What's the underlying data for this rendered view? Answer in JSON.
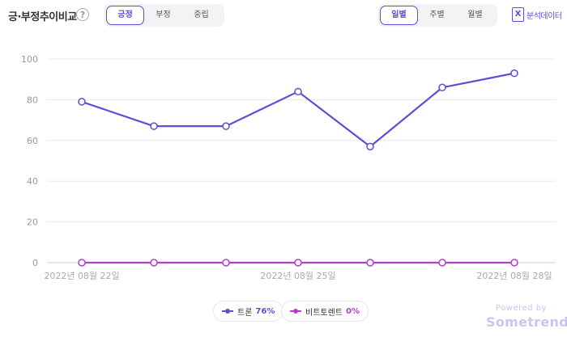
{
  "header": {
    "title": "긍·부정추이비교",
    "help_symbol": "?",
    "sentiment_tabs": [
      "긍정",
      "부정",
      "중립"
    ],
    "sentiment_active": 0,
    "period_tabs": [
      "일별",
      "주별",
      "월별"
    ],
    "period_active": 0,
    "export": {
      "icon_letter": "X",
      "label": "분석데이터"
    }
  },
  "chart_data": {
    "type": "line",
    "x": [
      "2022년 08월 22일",
      "2022년 08월 23일",
      "2022년 08월 24일",
      "2022년 08월 25일",
      "2022년 08월 26일",
      "2022년 08월 27일",
      "2022년 08월 28일"
    ],
    "x_tick_labels": [
      "2022년 08월 22일",
      "2022년 08월 25일",
      "2022년 08월 28일"
    ],
    "y_ticks": [
      0,
      20,
      40,
      60,
      80,
      100
    ],
    "ylim": [
      0,
      100
    ],
    "grid": true,
    "legend_position": "bottom-center",
    "series": [
      {
        "name": "트론",
        "share": "76%",
        "color": "#5b4fd6",
        "values": [
          79,
          67,
          67,
          84,
          57,
          86,
          93
        ]
      },
      {
        "name": "비트토렌트",
        "share": "0%",
        "color": "#b040c8",
        "values": [
          0,
          0,
          0,
          0,
          0,
          0,
          0
        ]
      }
    ]
  },
  "footer": {
    "powered_by": "Powered by",
    "brand": "Sometrend"
  }
}
